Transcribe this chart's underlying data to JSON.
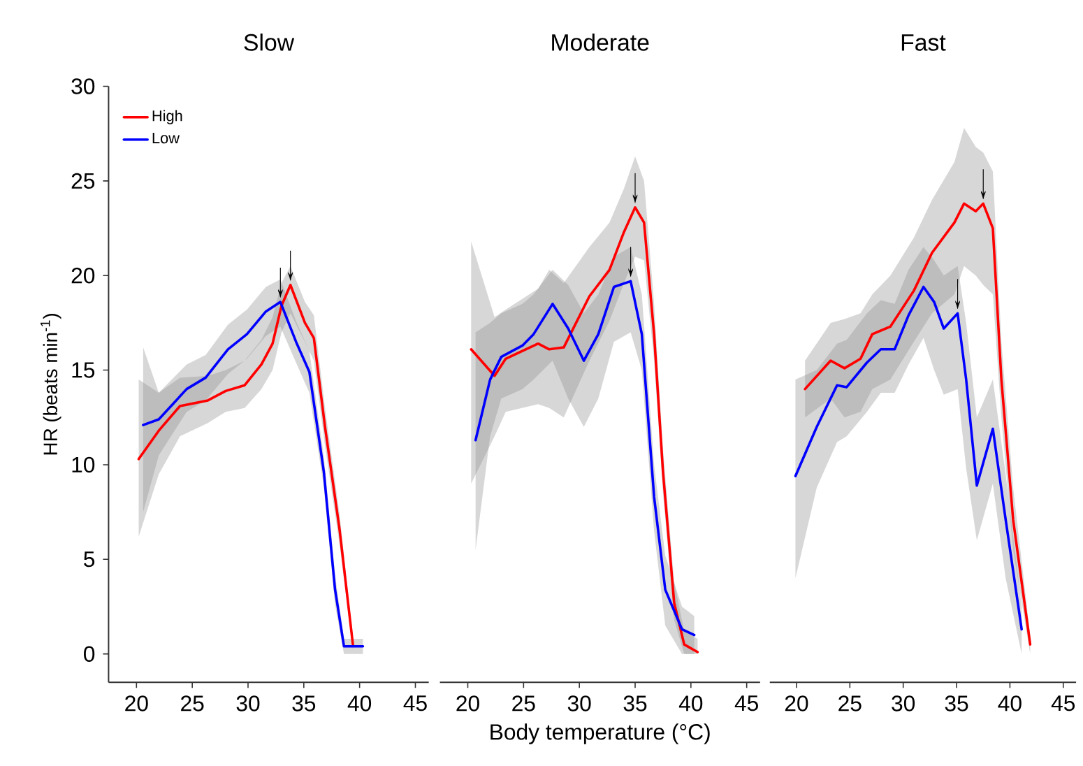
{
  "chart_data": [
    {
      "type": "line",
      "title": "Slow",
      "ylabel": "HR (beats min$^{-1}$)",
      "xlim": [
        17.5,
        46.2
      ],
      "ylim": [
        -1.5,
        30
      ],
      "xticks": [
        20,
        25,
        30,
        35,
        40,
        45
      ],
      "yticks": [
        0,
        5,
        10,
        15,
        20,
        25,
        30
      ],
      "legend": "top left",
      "grid": false,
      "series": [
        {
          "name": "High",
          "color": "#ff0000",
          "x": [
            20.2,
            22.0,
            23.9,
            26.4,
            28.0,
            29.7,
            31.2,
            32.2,
            33.0,
            33.8,
            35.1,
            35.9,
            36.9,
            38.2,
            39.4
          ],
          "values": [
            10.3,
            11.8,
            13.1,
            13.4,
            13.9,
            14.2,
            15.3,
            16.4,
            18.4,
            19.5,
            17.5,
            16.7,
            12.0,
            6.6,
            0.5
          ],
          "lower": [
            6.2,
            9.5,
            11.5,
            12.2,
            12.8,
            13.0,
            14.0,
            15.0,
            17.0,
            18.0,
            16.5,
            15.5,
            11.0,
            5.8,
            0.2
          ],
          "upper": [
            14.5,
            13.8,
            14.6,
            14.7,
            15.0,
            15.5,
            16.6,
            17.8,
            19.6,
            20.5,
            18.6,
            17.9,
            13.0,
            7.4,
            0.8
          ]
        },
        {
          "name": "Low",
          "color": "#0000ff",
          "x": [
            20.6,
            22.0,
            24.5,
            26.2,
            28.2,
            29.9,
            31.6,
            32.9,
            34.3,
            35.5,
            36.8,
            37.8,
            38.6,
            40.3
          ],
          "values": [
            12.1,
            12.4,
            14.0,
            14.6,
            16.1,
            16.9,
            18.1,
            18.6,
            16.5,
            14.9,
            9.6,
            3.4,
            0.4,
            0.4
          ],
          "lower": [
            7.5,
            10.5,
            12.8,
            13.4,
            14.8,
            15.6,
            16.8,
            17.3,
            15.4,
            13.8,
            8.8,
            2.6,
            0.0,
            0.0
          ],
          "upper": [
            16.2,
            13.8,
            15.3,
            15.8,
            17.4,
            18.2,
            19.4,
            19.8,
            17.6,
            16.0,
            10.4,
            4.2,
            0.8,
            0.8
          ]
        }
      ],
      "annotations": [
        {
          "text": "↓",
          "x": 32.9,
          "y": 18.6
        },
        {
          "text": "↓",
          "x": 33.8,
          "y": 19.5
        }
      ]
    },
    {
      "type": "line",
      "title": "Moderate",
      "xlabel": "Body temperature (°C)",
      "xlim": [
        17.5,
        46.2
      ],
      "ylim": [
        -1.5,
        30
      ],
      "xticks": [
        20,
        25,
        30,
        35,
        40,
        45
      ],
      "tick_labels": "x",
      "grid": false,
      "series": [
        {
          "color": "#ff0000",
          "x": [
            20.3,
            22.4,
            23.4,
            26.3,
            27.3,
            28.6,
            30.9,
            32.7,
            34.0,
            35.0,
            35.8,
            36.7,
            37.5,
            38.5,
            39.4,
            40.6
          ],
          "values": [
            16.1,
            14.7,
            15.6,
            16.4,
            16.1,
            16.2,
            18.9,
            20.3,
            22.3,
            23.6,
            22.8,
            16.9,
            9.6,
            2.7,
            0.5,
            0.1
          ],
          "lower": [
            9.0,
            11.5,
            12.8,
            13.2,
            13.0,
            12.5,
            15.5,
            17.6,
            19.6,
            21.0,
            20.8,
            15.5,
            8.5,
            1.8,
            0.0,
            0.0
          ],
          "upper": [
            21.8,
            17.8,
            18.2,
            19.3,
            20.3,
            19.6,
            21.5,
            22.8,
            24.6,
            26.3,
            25.0,
            18.5,
            10.8,
            3.8,
            1.2,
            0.8
          ]
        },
        {
          "color": "#0000ff",
          "x": [
            20.7,
            22.0,
            23.0,
            24.9,
            25.9,
            27.6,
            29.0,
            30.4,
            31.7,
            33.1,
            34.6,
            35.6,
            36.7,
            37.7,
            39.2,
            40.3
          ],
          "values": [
            11.3,
            14.5,
            15.7,
            16.3,
            16.9,
            18.5,
            17.2,
            15.5,
            16.9,
            19.4,
            19.7,
            16.9,
            8.3,
            3.4,
            1.3,
            1.0
          ],
          "lower": [
            5.5,
            11.5,
            13.5,
            14.0,
            14.5,
            15.5,
            13.5,
            12.0,
            13.5,
            16.5,
            17.0,
            15.0,
            6.5,
            1.5,
            0.0,
            0.0
          ],
          "upper": [
            17.0,
            17.5,
            18.0,
            18.5,
            19.0,
            20.3,
            19.5,
            18.0,
            19.0,
            21.0,
            21.5,
            19.0,
            10.0,
            5.2,
            2.5,
            2.0
          ]
        }
      ],
      "annotations": [
        {
          "text": "↓",
          "x": 35.0,
          "y": 23.6
        },
        {
          "text": "↓",
          "x": 34.6,
          "y": 19.7
        }
      ]
    },
    {
      "type": "line",
      "title": "Fast",
      "xlim": [
        17.5,
        46.2
      ],
      "ylim": [
        -1.5,
        30
      ],
      "xticks": [
        20,
        25,
        30,
        35,
        40,
        45
      ],
      "tick_labels": "x",
      "grid": false,
      "series": [
        {
          "color": "#ff0000",
          "x": [
            20.8,
            23.2,
            24.5,
            26.0,
            27.1,
            28.8,
            31.0,
            32.7,
            34.8,
            35.7,
            36.8,
            37.5,
            38.4,
            39.2,
            40.3,
            41.9
          ],
          "values": [
            14.0,
            15.5,
            15.1,
            15.6,
            16.9,
            17.3,
            19.2,
            21.2,
            22.8,
            23.8,
            23.4,
            23.8,
            22.5,
            14.5,
            7.1,
            0.5
          ],
          "lower": [
            12.5,
            13.5,
            12.5,
            12.8,
            14.0,
            14.5,
            16.5,
            18.0,
            19.0,
            20.5,
            20.0,
            19.5,
            19.0,
            12.5,
            5.5,
            0.0
          ],
          "upper": [
            15.5,
            17.5,
            17.7,
            18.0,
            19.0,
            20.0,
            22.0,
            24.0,
            26.0,
            27.8,
            26.8,
            26.5,
            25.5,
            16.5,
            8.8,
            1.0
          ]
        },
        {
          "color": "#0000ff",
          "x": [
            19.9,
            21.9,
            23.8,
            24.7,
            26.6,
            27.9,
            29.2,
            30.5,
            31.9,
            32.9,
            33.8,
            35.1,
            35.9,
            36.9,
            38.4,
            39.6,
            41.1
          ],
          "values": [
            9.4,
            12.0,
            14.2,
            14.1,
            15.4,
            16.1,
            16.1,
            17.9,
            19.4,
            18.6,
            17.2,
            18.0,
            14.5,
            8.9,
            11.9,
            7.1,
            1.3
          ],
          "lower": [
            4.0,
            8.8,
            11.2,
            11.5,
            12.8,
            13.8,
            13.8,
            15.3,
            16.7,
            15.0,
            13.7,
            14.0,
            9.8,
            6.0,
            9.0,
            4.0,
            0.0
          ],
          "upper": [
            14.5,
            15.0,
            16.4,
            16.6,
            18.0,
            18.7,
            18.5,
            20.3,
            21.5,
            20.8,
            20.0,
            20.5,
            17.5,
            12.5,
            14.5,
            9.5,
            2.5
          ]
        }
      ],
      "annotations": [
        {
          "text": "↓",
          "x": 37.5,
          "y": 23.8
        },
        {
          "text": "↓",
          "x": 35.1,
          "y": 18.0
        }
      ]
    }
  ]
}
